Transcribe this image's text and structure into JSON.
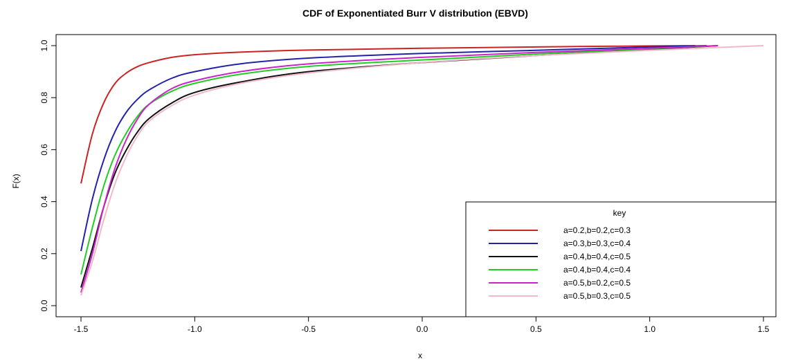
{
  "chart_data": {
    "type": "line",
    "title": "CDF of Exponentiated Burr V distribution (EBVD)",
    "xlabel": "x",
    "ylabel": "F(x)",
    "xlim": [
      -1.5,
      1.5
    ],
    "ylim": [
      0.0,
      1.0
    ],
    "xticks": [
      "-1.5",
      "-1.0",
      "-0.5",
      "0.0",
      "0.5",
      "1.0",
      "1.5"
    ],
    "yticks": [
      "0.0",
      "0.2",
      "0.4",
      "0.6",
      "0.8",
      "1.0"
    ],
    "grid": false,
    "legend": {
      "title": "key",
      "position": "bottom-right"
    },
    "series": [
      {
        "name": "a=0.2,b=0.2,c=0.3",
        "color": "#cc2222",
        "x": [
          -1.5,
          -1.45,
          -1.4,
          -1.35,
          -1.3,
          -1.25,
          -1.2,
          -1.1,
          -1.0,
          -0.8,
          -0.5,
          0.0,
          0.5,
          1.0,
          1.2
        ],
        "y": [
          0.47,
          0.66,
          0.78,
          0.855,
          0.895,
          0.92,
          0.935,
          0.955,
          0.965,
          0.975,
          0.983,
          0.99,
          0.995,
          0.999,
          1.0
        ]
      },
      {
        "name": "a=0.3,b=0.3,c=0.4",
        "color": "#2222aa",
        "x": [
          -1.5,
          -1.45,
          -1.4,
          -1.35,
          -1.3,
          -1.25,
          -1.2,
          -1.1,
          -1.0,
          -0.8,
          -0.5,
          0.0,
          0.5,
          1.0,
          1.25
        ],
        "y": [
          0.21,
          0.41,
          0.56,
          0.67,
          0.745,
          0.795,
          0.83,
          0.875,
          0.9,
          0.93,
          0.952,
          0.97,
          0.982,
          0.995,
          1.0
        ]
      },
      {
        "name": "a=0.4,b=0.4,c=0.5",
        "color": "#111111",
        "x": [
          -1.5,
          -1.45,
          -1.4,
          -1.35,
          -1.3,
          -1.25,
          -1.2,
          -1.1,
          -1.0,
          -0.8,
          -0.5,
          0.0,
          0.5,
          1.0,
          1.3
        ],
        "y": [
          0.07,
          0.22,
          0.38,
          0.51,
          0.6,
          0.67,
          0.72,
          0.78,
          0.82,
          0.86,
          0.9,
          0.935,
          0.962,
          0.985,
          1.0
        ]
      },
      {
        "name": "a=0.4,b=0.4,c=0.4",
        "color": "#22cc22",
        "x": [
          -1.5,
          -1.45,
          -1.4,
          -1.35,
          -1.3,
          -1.25,
          -1.2,
          -1.1,
          -1.0,
          -0.8,
          -0.5,
          0.0,
          0.5,
          1.0,
          1.3
        ],
        "y": [
          0.12,
          0.3,
          0.46,
          0.58,
          0.665,
          0.73,
          0.775,
          0.825,
          0.855,
          0.89,
          0.92,
          0.945,
          0.968,
          0.988,
          1.0
        ]
      },
      {
        "name": "a=0.5,b=0.2,c=0.5",
        "color": "#cc22cc",
        "x": [
          -1.5,
          -1.45,
          -1.4,
          -1.35,
          -1.3,
          -1.25,
          -1.2,
          -1.1,
          -1.0,
          -0.8,
          -0.5,
          0.0,
          0.5,
          1.0,
          1.3
        ],
        "y": [
          0.05,
          0.2,
          0.38,
          0.53,
          0.64,
          0.72,
          0.775,
          0.835,
          0.865,
          0.9,
          0.93,
          0.955,
          0.974,
          0.99,
          1.0
        ]
      },
      {
        "name": "a=0.5,b=0.3,c=0.5",
        "color": "#f0b8c8",
        "x": [
          -1.5,
          -1.45,
          -1.4,
          -1.35,
          -1.3,
          -1.25,
          -1.2,
          -1.1,
          -1.0,
          -0.8,
          -0.5,
          0.0,
          0.5,
          1.0,
          1.5
        ],
        "y": [
          0.04,
          0.17,
          0.33,
          0.47,
          0.575,
          0.655,
          0.71,
          0.77,
          0.81,
          0.855,
          0.895,
          0.935,
          0.962,
          0.982,
          1.0
        ]
      }
    ]
  }
}
